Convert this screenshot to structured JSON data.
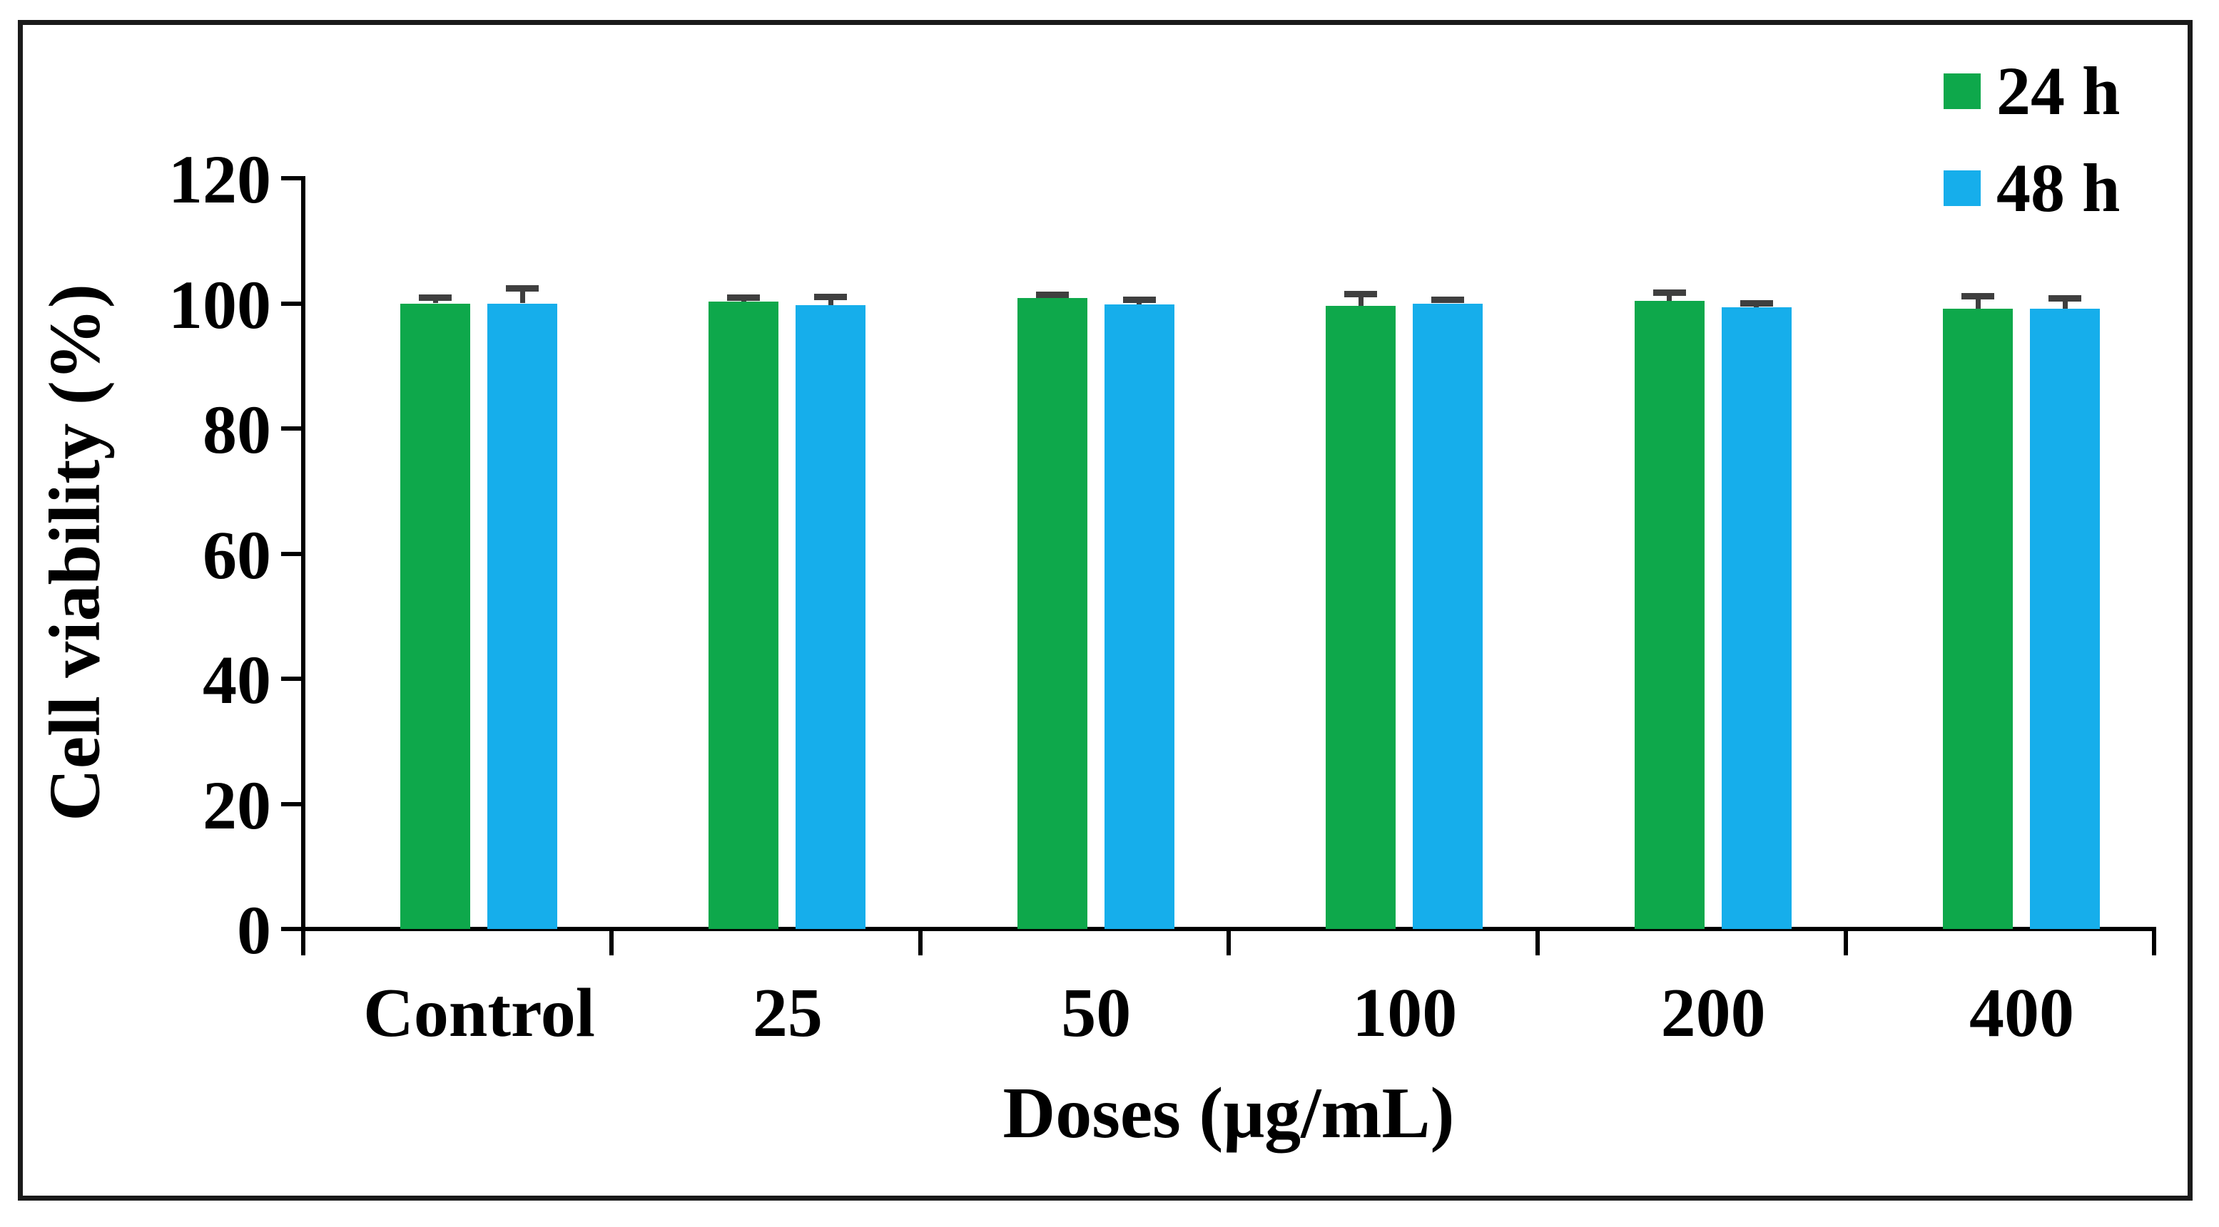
{
  "chart_data": {
    "type": "bar",
    "title": "",
    "xlabel": "Doses (μg/mL)",
    "ylabel": "Cell viability (%)",
    "categories": [
      "Control",
      "25",
      "50",
      "100",
      "200",
      "400"
    ],
    "series": [
      {
        "name": "24 h",
        "color": "#0EA84B",
        "values": [
          100,
          100.3,
          100.8,
          99.6,
          100.4,
          99.1
        ],
        "errors": [
          0.8,
          0.6,
          0.5,
          1.8,
          1.2,
          2.0
        ]
      },
      {
        "name": "48 h",
        "color": "#16AEEB",
        "values": [
          100,
          99.7,
          99.8,
          100,
          99.4,
          99.2
        ],
        "errors": [
          2.3,
          1.3,
          0.7,
          0.5,
          0.5,
          1.5
        ]
      }
    ],
    "ylim": [
      0,
      120
    ],
    "yticks": [
      0,
      20,
      40,
      60,
      80,
      100,
      120
    ],
    "grid": false,
    "legend_position": "top-right",
    "error_bar_color": "#3F3F3F",
    "axis_color": "#000000",
    "frame_color": "#1A1A1A"
  }
}
